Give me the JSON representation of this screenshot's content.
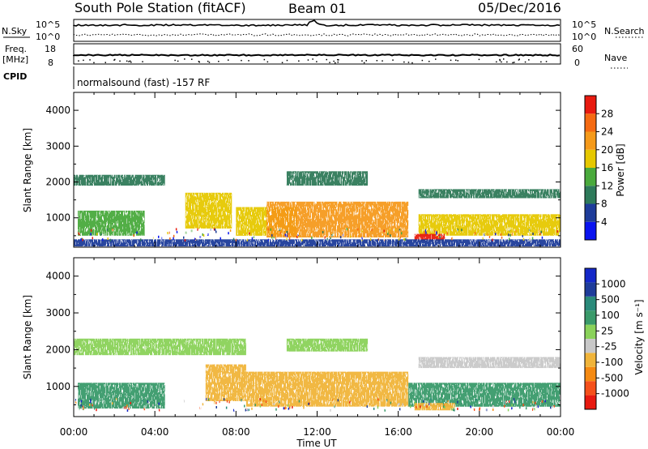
{
  "header": {
    "title": "South Pole Station (fitACF)",
    "beam": "Beam 01",
    "date": "05/Dec/2016"
  },
  "strips": {
    "nsky": {
      "label": "N.Sky",
      "ticks": [
        "10^5",
        "10^0"
      ]
    },
    "nsearch": {
      "label": "N.Search",
      "ticks": [
        "10^5",
        "10^0"
      ]
    },
    "freq": {
      "label_line1": "Freq.",
      "label_line2": "[MHz]",
      "ticks": [
        "18",
        "8"
      ]
    },
    "nave": {
      "label": "Nave",
      "ticks": [
        "60",
        "0"
      ]
    },
    "cpid": {
      "label": "CPID",
      "value": "normalsound (fast) -157 RF"
    }
  },
  "colors": {
    "power": [
      "#0a14f0",
      "#1e3c9a",
      "#2e7a5a",
      "#4aaa3c",
      "#e6c800",
      "#f59a1a",
      "#f56a12",
      "#e81a10"
    ],
    "velocity": [
      "#e81a10",
      "#f5501a",
      "#f58a12",
      "#f0b43a",
      "#c8c8c8",
      "#8ad25a",
      "#3a9a6a",
      "#2a8a7a",
      "#1e3c9a",
      "#1428c8"
    ]
  },
  "chart_data": [
    {
      "type": "heatmap",
      "panel": "power",
      "title": "",
      "xlabel": "",
      "ylabel": "Slant Range [km]",
      "xlim": [
        "00:00",
        "00:00"
      ],
      "ylim": [
        180,
        4500
      ],
      "x_ticks": [
        "00:00",
        "04:00",
        "08:00",
        "12:00",
        "16:00",
        "20:00",
        "00:00"
      ],
      "y_ticks": [
        1000,
        2000,
        3000,
        4000
      ],
      "colorbar": {
        "label": "Power [dB]",
        "ticks": [
          "28",
          "24",
          "20",
          "16",
          "12",
          "8",
          "4"
        ],
        "range": [
          0,
          30
        ]
      },
      "regions": [
        {
          "t0": 0.0,
          "t1": 4.5,
          "r0": 1900,
          "r1": 2200,
          "level": 9
        },
        {
          "t0": 0.2,
          "t1": 3.5,
          "r0": 500,
          "r1": 1200,
          "level": 14
        },
        {
          "t0": 5.5,
          "t1": 7.8,
          "r0": 700,
          "r1": 1700,
          "level": 15
        },
        {
          "t0": 8.0,
          "t1": 11.0,
          "r0": 500,
          "r1": 1300,
          "level": 18
        },
        {
          "t0": 9.5,
          "t1": 16.5,
          "r0": 450,
          "r1": 1450,
          "level": 22
        },
        {
          "t0": 10.5,
          "t1": 14.5,
          "r0": 1900,
          "r1": 2300,
          "level": 10
        },
        {
          "t0": 17.0,
          "t1": 24.0,
          "r0": 500,
          "r1": 1100,
          "level": 16
        },
        {
          "t0": 17.0,
          "t1": 24.0,
          "r0": 1550,
          "r1": 1800,
          "level": 8
        },
        {
          "t0": 16.8,
          "t1": 18.3,
          "r0": 350,
          "r1": 550,
          "level": 27
        },
        {
          "t0": 0.0,
          "t1": 24.0,
          "r0": 200,
          "r1": 400,
          "level": 6
        }
      ]
    },
    {
      "type": "heatmap",
      "panel": "velocity",
      "title": "",
      "xlabel": "Time UT",
      "ylabel": "Slant Range [km]",
      "xlim": [
        "00:00",
        "00:00"
      ],
      "ylim": [
        180,
        4500
      ],
      "x_ticks": [
        "00:00",
        "04:00",
        "08:00",
        "12:00",
        "16:00",
        "20:00",
        "00:00"
      ],
      "y_ticks": [
        1000,
        2000,
        3000,
        4000
      ],
      "colorbar": {
        "label": "Velocity [m s⁻¹]",
        "ticks": [
          "1000",
          "500",
          "100",
          "25",
          "-25",
          "-100",
          "-500",
          "-1000"
        ],
        "range": [
          -1200,
          1200
        ]
      },
      "regions": [
        {
          "t0": 0.0,
          "t1": 8.5,
          "r0": 1850,
          "r1": 2300,
          "level": 0
        },
        {
          "t0": 0.2,
          "t1": 4.5,
          "r0": 400,
          "r1": 1100,
          "level": 300
        },
        {
          "t0": 6.5,
          "t1": 8.5,
          "r0": 600,
          "r1": 1600,
          "level": -300
        },
        {
          "t0": 8.5,
          "t1": 16.5,
          "r0": 450,
          "r1": 1400,
          "level": -300
        },
        {
          "t0": 10.5,
          "t1": 14.5,
          "r0": 1950,
          "r1": 2300,
          "level": 0
        },
        {
          "t0": 16.5,
          "t1": 24.0,
          "r0": 450,
          "r1": 1100,
          "level": 300
        },
        {
          "t0": 17.0,
          "t1": 24.0,
          "r0": 1500,
          "r1": 1800,
          "level": -60
        },
        {
          "t0": 16.8,
          "t1": 18.8,
          "r0": 350,
          "r1": 550,
          "level": -300
        }
      ]
    }
  ]
}
